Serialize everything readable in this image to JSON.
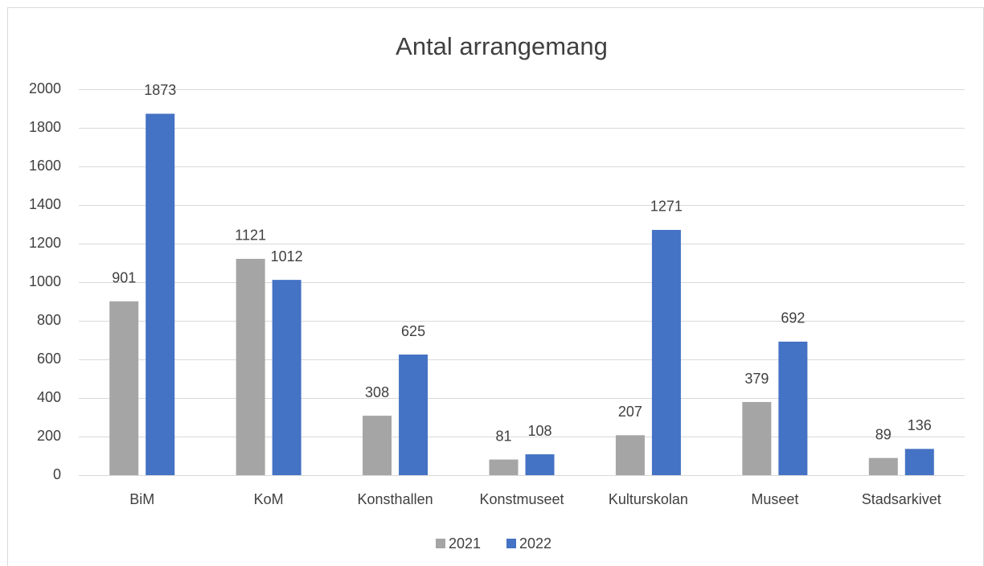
{
  "chart_data": {
    "type": "bar",
    "title": "Antal arrangemang",
    "categories": [
      "BiM",
      "KoM",
      "Konsthallen",
      "Konstmuseet",
      "Kulturskolan",
      "Museet",
      "Stadsarkivet"
    ],
    "series": [
      {
        "name": "2021",
        "color": "#a5a5a5",
        "values": [
          901,
          1121,
          308,
          81,
          207,
          379,
          89
        ]
      },
      {
        "name": "2022",
        "color": "#4472c4",
        "values": [
          1873,
          1012,
          625,
          108,
          1271,
          692,
          136
        ]
      }
    ],
    "ylim": [
      0,
      2000
    ],
    "yticks": [
      0,
      200,
      400,
      600,
      800,
      1000,
      1200,
      1400,
      1600,
      1800,
      2000
    ],
    "grid": true,
    "legend": "bottom"
  }
}
